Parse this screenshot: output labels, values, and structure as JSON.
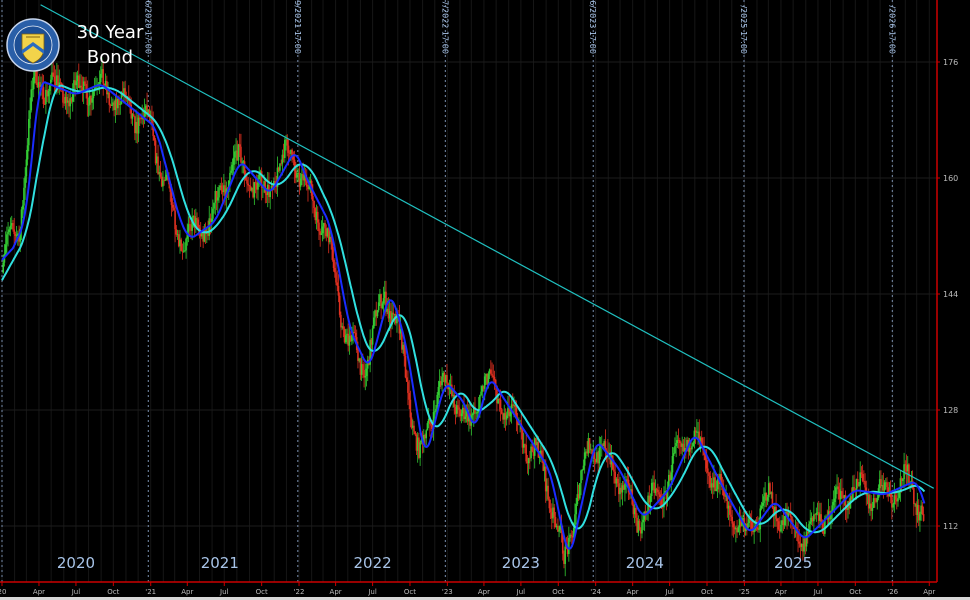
{
  "title": "30 Year Bond",
  "logo_text": "THE DEPARTMENT OF THE TREASURY 1789",
  "colors": {
    "background": "#000000",
    "up": "#33cc33",
    "down": "#e03020",
    "ma_fast": "#1a2cff",
    "ma_slow": "#30e0e0",
    "trendline": "#20c0c0",
    "axis": "#cc0000",
    "label": "#a8c4e8"
  },
  "chart_data": {
    "type": "line",
    "title": "30 Year Bond",
    "xlim": [
      "2020-01-01",
      "2026-04-20"
    ],
    "ylim": [
      107,
      184.5
    ],
    "y_ticks": [
      112,
      128,
      144,
      160,
      176
    ],
    "x_ticks": [
      {
        "date": "2020-01-01",
        "label": "20"
      },
      {
        "date": "2020-04-01",
        "label": "Apr"
      },
      {
        "date": "2020-07-01",
        "label": "Jul"
      },
      {
        "date": "2020-10-01",
        "label": "Oct"
      },
      {
        "date": "2021-01-01",
        "label": "'21"
      },
      {
        "date": "2021-04-01",
        "label": "Apr"
      },
      {
        "date": "2021-07-01",
        "label": "Jul"
      },
      {
        "date": "2021-10-01",
        "label": "Oct"
      },
      {
        "date": "2022-01-01",
        "label": "'22"
      },
      {
        "date": "2022-04-01",
        "label": "Apr"
      },
      {
        "date": "2022-07-01",
        "label": "Jul"
      },
      {
        "date": "2022-10-01",
        "label": "Oct"
      },
      {
        "date": "2023-01-01",
        "label": "'23"
      },
      {
        "date": "2023-04-01",
        "label": "Apr"
      },
      {
        "date": "2023-07-01",
        "label": "Jul"
      },
      {
        "date": "2023-10-01",
        "label": "Oct"
      },
      {
        "date": "2024-01-01",
        "label": "'24"
      },
      {
        "date": "2024-04-01",
        "label": "Apr"
      },
      {
        "date": "2024-07-01",
        "label": "Jul"
      },
      {
        "date": "2024-10-01",
        "label": "Oct"
      },
      {
        "date": "2025-01-01",
        "label": "'25"
      },
      {
        "date": "2025-04-01",
        "label": "Apr"
      },
      {
        "date": "2025-07-01",
        "label": "Jul"
      },
      {
        "date": "2025-10-01",
        "label": "Oct"
      },
      {
        "date": "2026-01-01",
        "label": "'26"
      },
      {
        "date": "2026-04-01",
        "label": "Apr"
      }
    ],
    "year_labels": [
      {
        "date": "2020-07-01",
        "label": "2020"
      },
      {
        "date": "2021-06-20",
        "label": "2021"
      },
      {
        "date": "2022-07-01",
        "label": "2022"
      },
      {
        "date": "2023-07-01",
        "label": "2023"
      },
      {
        "date": "2024-05-01",
        "label": "2024"
      },
      {
        "date": "2025-05-01",
        "label": "2025"
      }
    ],
    "session_markers": [
      {
        "date": "2020-01-01",
        "label": ""
      },
      {
        "date": "2020-12-26",
        "label": "26/2020 17:00"
      },
      {
        "date": "2021-12-29",
        "label": "29/2021 17:00"
      },
      {
        "date": "2022-12-27",
        "label": "27/2022 17:00"
      },
      {
        "date": "2023-12-26",
        "label": "26/2023 17:00"
      },
      {
        "date": "2024-12-31",
        "label": "/2025 17:00"
      },
      {
        "date": "2025-12-31",
        "label": "/2026 17:00"
      }
    ],
    "series": [
      {
        "type": "candlestick",
        "points": [
          [
            "2020-01-01",
            148.7
          ],
          [
            "2020-02-14",
            154
          ],
          [
            "2020-03-20",
            173.5
          ],
          [
            "2020-06-17",
            171.5
          ],
          [
            "2020-08-18",
            173
          ],
          [
            "2020-12-31",
            167
          ],
          [
            "2021-03-01",
            154
          ],
          [
            "2021-03-25",
            151.5
          ],
          [
            "2021-05-27",
            154
          ],
          [
            "2021-07-27",
            162.5
          ],
          [
            "2021-10-08",
            157.7
          ],
          [
            "2021-12-10",
            164
          ],
          [
            "2022-01-05",
            160
          ],
          [
            "2022-03-06",
            153.5
          ],
          [
            "2022-04-23",
            139
          ],
          [
            "2022-06-09",
            133.5
          ],
          [
            "2022-07-31",
            144.5
          ],
          [
            "2022-09-06",
            137.7
          ],
          [
            "2022-10-25",
            121
          ],
          [
            "2022-12-13",
            132
          ],
          [
            "2023-01-30",
            129
          ],
          [
            "2023-02-25",
            125
          ],
          [
            "2023-04-01",
            132.7
          ],
          [
            "2023-06-28",
            125
          ],
          [
            "2023-08-28",
            119.7
          ],
          [
            "2023-10-15",
            107
          ],
          [
            "2023-11-10",
            114
          ],
          [
            "2023-12-19",
            124
          ],
          [
            "2024-02-17",
            119.7
          ],
          [
            "2024-04-12",
            113
          ],
          [
            "2024-06-16",
            117
          ],
          [
            "2024-08-18",
            125
          ],
          [
            "2024-10-30",
            117
          ],
          [
            "2025-01-01",
            110.8
          ],
          [
            "2025-03-04",
            115.6
          ],
          [
            "2025-05-15",
            110
          ],
          [
            "2025-07-16",
            113.5
          ],
          [
            "2025-09-16",
            117
          ],
          [
            "2025-11-28",
            116.3
          ],
          [
            "2026-02-16",
            118.3
          ],
          [
            "2026-03-20",
            112.8
          ]
        ]
      },
      {
        "type": "moving_average",
        "role": "fast"
      },
      {
        "type": "moving_average",
        "role": "slow"
      }
    ],
    "trendline": {
      "from": [
        "2020-04-05",
        183.9
      ],
      "to": [
        "2026-04-12",
        117.2
      ]
    }
  }
}
